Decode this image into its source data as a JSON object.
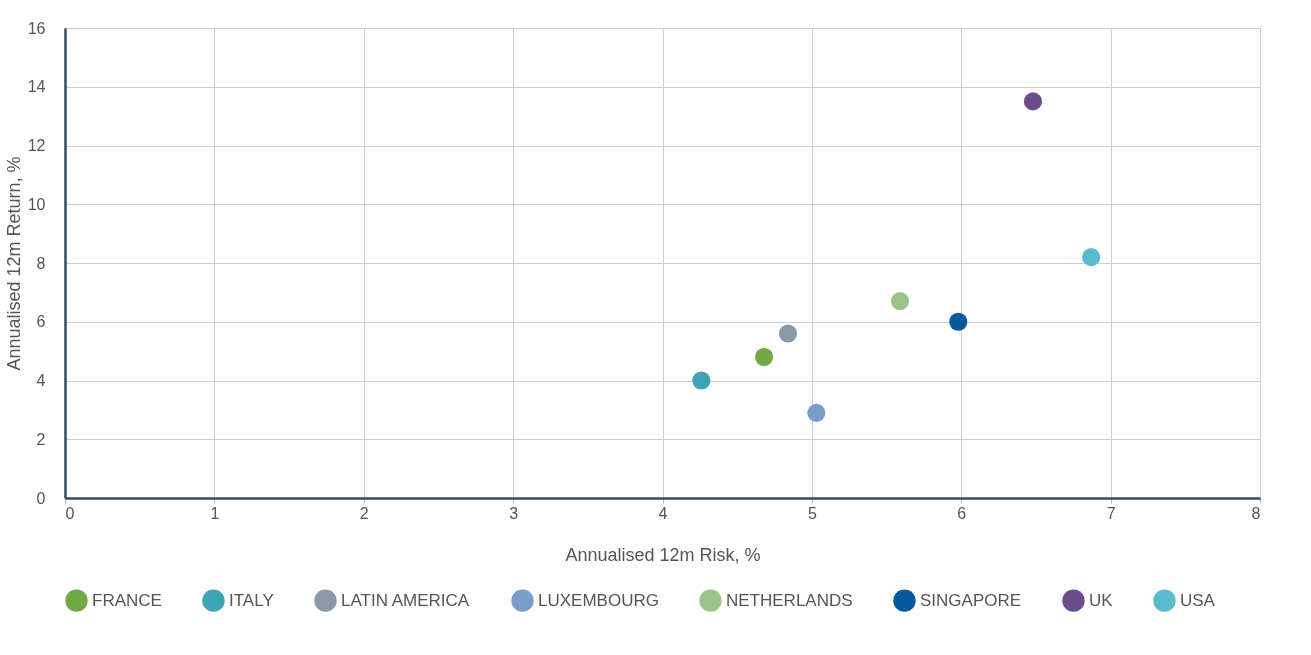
{
  "chart_data": {
    "type": "scatter",
    "xlabel": "Annualised 12m Risk, %",
    "ylabel": "Annualised 12m Return, %",
    "xlim": [
      0,
      8
    ],
    "xticks": [
      0,
      1,
      2,
      3,
      4,
      5,
      6,
      7,
      8
    ],
    "ylim": [
      0,
      16
    ],
    "yticks": [
      0,
      2,
      4,
      6,
      8,
      10,
      12,
      14,
      16
    ],
    "grid": true,
    "legend": "bottom",
    "marker": "circle",
    "series": [
      {
        "name": "FRANCE",
        "color": "#70a845",
        "x": [
          4.68
        ],
        "values": [
          4.8
        ]
      },
      {
        "name": "ITALY",
        "color": "#3fa3b5",
        "x": [
          4.26
        ],
        "values": [
          4.0
        ]
      },
      {
        "name": "LATIN AMERICA",
        "color": "#8a98a8",
        "x": [
          4.84
        ],
        "values": [
          5.6
        ]
      },
      {
        "name": "LUXEMBOURG",
        "color": "#7b9bcb",
        "x": [
          5.03
        ],
        "values": [
          2.9
        ]
      },
      {
        "name": "NETHERLANDS",
        "color": "#9dc488",
        "x": [
          5.59
        ],
        "values": [
          6.7
        ]
      },
      {
        "name": "SINGAPORE",
        "color": "#045a9c",
        "x": [
          5.98
        ],
        "values": [
          6.0
        ]
      },
      {
        "name": "UK",
        "color": "#6d4c8c",
        "x": [
          6.48
        ],
        "values": [
          13.5
        ]
      },
      {
        "name": "USA",
        "color": "#5bbacd",
        "x": [
          6.87
        ],
        "values": [
          8.2
        ]
      }
    ]
  }
}
